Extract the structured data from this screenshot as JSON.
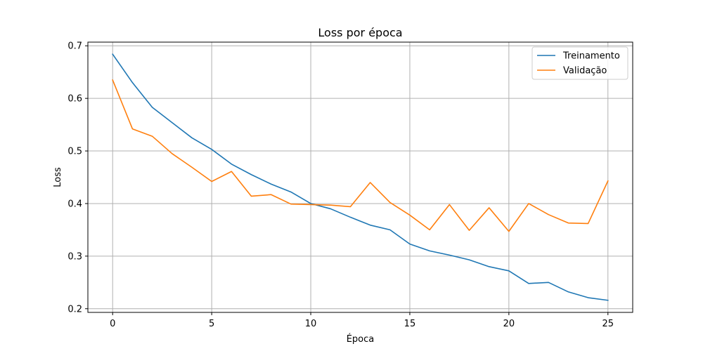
{
  "chart_data": {
    "type": "line",
    "title": "Loss por época",
    "xlabel": "Época",
    "ylabel": "Loss",
    "xlim": [
      -1.25,
      26.25
    ],
    "ylim": [
      0.193,
      0.707
    ],
    "xticks": [
      0,
      5,
      10,
      15,
      20,
      25
    ],
    "yticks": [
      0.2,
      0.3,
      0.4,
      0.5,
      0.6,
      0.7
    ],
    "grid": true,
    "legend_position": "top-right",
    "x": [
      0,
      1,
      2,
      3,
      4,
      5,
      6,
      7,
      8,
      9,
      10,
      11,
      12,
      13,
      14,
      15,
      16,
      17,
      18,
      19,
      20,
      21,
      22,
      23,
      24,
      25
    ],
    "series": [
      {
        "name": "Treinamento",
        "color": "#1f77b4",
        "values": [
          0.684,
          0.63,
          0.583,
          0.554,
          0.525,
          0.503,
          0.475,
          0.455,
          0.437,
          0.422,
          0.4,
          0.39,
          0.374,
          0.359,
          0.35,
          0.323,
          0.31,
          0.302,
          0.293,
          0.28,
          0.272,
          0.248,
          0.25,
          0.232,
          0.221,
          0.216
        ]
      },
      {
        "name": "Validação",
        "color": "#ff7f0e",
        "values": [
          0.635,
          0.542,
          0.528,
          0.495,
          0.469,
          0.442,
          0.461,
          0.414,
          0.417,
          0.399,
          0.398,
          0.397,
          0.394,
          0.44,
          0.402,
          0.378,
          0.35,
          0.398,
          0.349,
          0.392,
          0.347,
          0.4,
          0.379,
          0.363,
          0.362,
          0.443
        ]
      }
    ]
  }
}
